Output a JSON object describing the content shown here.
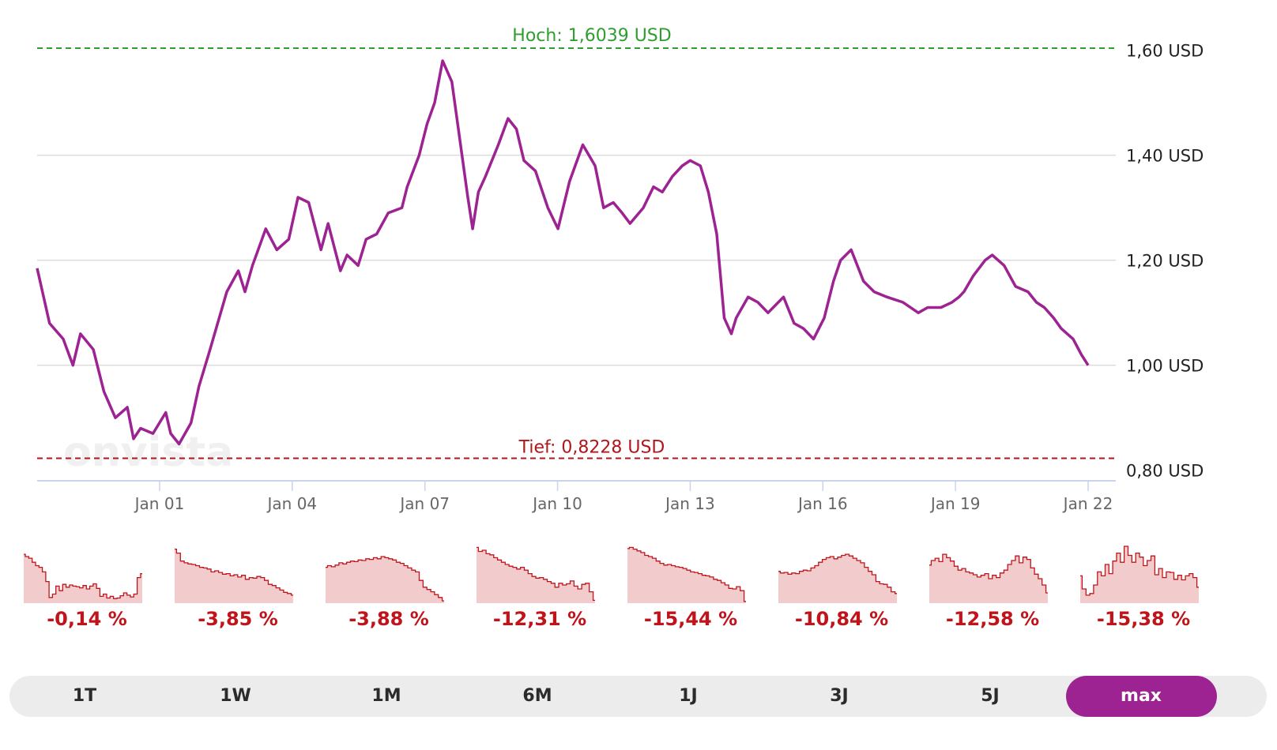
{
  "chart_data": {
    "type": "line",
    "ylim": [
      0.78,
      1.61
    ],
    "y_ticks": [
      {
        "value": 0.8,
        "label": "0,80 USD"
      },
      {
        "value": 1.0,
        "label": "1,00 USD"
      },
      {
        "value": 1.2,
        "label": "1,20 USD"
      },
      {
        "value": 1.4,
        "label": "1,40 USD"
      },
      {
        "value": 1.6,
        "label": "1,60 USD"
      }
    ],
    "x_ticks": [
      {
        "value": 0.65,
        "label": "Jan 01"
      },
      {
        "value": 3.65,
        "label": "Jan 04"
      },
      {
        "value": 6.65,
        "label": "Jan 07"
      },
      {
        "value": 9.65,
        "label": "Jan 10"
      },
      {
        "value": 12.65,
        "label": "Jan 13"
      },
      {
        "value": 15.65,
        "label": "Jan 16"
      },
      {
        "value": 18.65,
        "label": "Jan 19"
      },
      {
        "value": 21.65,
        "label": "Jan 22"
      }
    ],
    "x_range": [
      -2.12,
      21.65
    ],
    "high": {
      "value": 1.6039,
      "label": "Hoch: 1,6039 USD"
    },
    "low": {
      "value": 0.8228,
      "label": "Tief: 0,8228 USD"
    },
    "watermark": "onvista",
    "series": [
      {
        "color": "#9c2391",
        "x": [
          -2.12,
          -1.84,
          -1.53,
          -1.31,
          -1.14,
          -0.85,
          -0.61,
          -0.35,
          -0.08,
          0.06,
          0.22,
          0.5,
          0.79,
          0.9,
          1.09,
          1.36,
          1.54,
          1.79,
          2.17,
          2.43,
          2.58,
          2.75,
          3.05,
          3.3,
          3.57,
          3.78,
          4.02,
          4.3,
          4.46,
          4.74,
          4.89,
          5.14,
          5.32,
          5.56,
          5.82,
          6.13,
          6.25,
          6.52,
          6.7,
          6.87,
          7.05,
          7.26,
          7.62,
          7.73,
          7.86,
          8.02,
          8.31,
          8.53,
          8.72,
          8.89,
          9.15,
          9.43,
          9.66,
          9.92,
          10.22,
          10.5,
          10.69,
          10.91,
          11.11,
          11.29,
          11.59,
          11.82,
          12.02,
          12.25,
          12.47,
          12.65,
          12.88,
          13.06,
          13.25,
          13.42,
          13.58,
          13.69,
          13.96,
          14.18,
          14.41,
          14.76,
          15.0,
          15.21,
          15.44,
          15.68,
          15.89,
          16.05,
          16.29,
          16.57,
          16.81,
          17.1,
          17.46,
          17.81,
          18.02,
          18.32,
          18.57,
          18.73,
          18.84,
          19.05,
          19.32,
          19.48,
          19.75,
          20.01,
          20.29,
          20.48,
          20.66,
          20.87,
          21.04,
          21.31,
          21.5,
          21.65
        ],
        "y": [
          1.185,
          1.08,
          1.05,
          1.0,
          1.06,
          1.03,
          0.95,
          0.9,
          0.92,
          0.86,
          0.88,
          0.87,
          0.91,
          0.87,
          0.85,
          0.89,
          0.96,
          1.03,
          1.14,
          1.18,
          1.14,
          1.19,
          1.26,
          1.22,
          1.24,
          1.32,
          1.31,
          1.22,
          1.27,
          1.18,
          1.21,
          1.19,
          1.24,
          1.25,
          1.29,
          1.3,
          1.34,
          1.4,
          1.46,
          1.5,
          1.58,
          1.54,
          1.32,
          1.26,
          1.33,
          1.36,
          1.42,
          1.47,
          1.45,
          1.39,
          1.37,
          1.3,
          1.26,
          1.35,
          1.42,
          1.38,
          1.3,
          1.31,
          1.29,
          1.27,
          1.3,
          1.34,
          1.33,
          1.36,
          1.38,
          1.39,
          1.38,
          1.33,
          1.25,
          1.09,
          1.06,
          1.09,
          1.13,
          1.12,
          1.1,
          1.13,
          1.08,
          1.07,
          1.05,
          1.09,
          1.16,
          1.2,
          1.22,
          1.16,
          1.14,
          1.13,
          1.12,
          1.1,
          1.11,
          1.11,
          1.12,
          1.13,
          1.14,
          1.17,
          1.2,
          1.21,
          1.19,
          1.15,
          1.14,
          1.12,
          1.11,
          1.09,
          1.07,
          1.05,
          1.02,
          1.0
        ]
      }
    ]
  },
  "sparklines": [
    {
      "period": "1T",
      "change": "-0,14 %",
      "values": [
        0.86,
        0.82,
        0.79,
        0.72,
        0.66,
        0.63,
        0.55,
        0.38,
        0.1,
        0.16,
        0.3,
        0.22,
        0.33,
        0.28,
        0.32,
        0.3,
        0.29,
        0.27,
        0.31,
        0.25,
        0.3,
        0.34,
        0.26,
        0.12,
        0.16,
        0.09,
        0.12,
        0.08,
        0.09,
        0.13,
        0.18,
        0.14,
        0.11,
        0.16,
        0.45,
        0.52
      ]
    },
    {
      "period": "1W",
      "change": "-3,85 %",
      "values": [
        0.95,
        0.88,
        0.74,
        0.71,
        0.69,
        0.68,
        0.66,
        0.63,
        0.62,
        0.6,
        0.55,
        0.57,
        0.54,
        0.51,
        0.52,
        0.48,
        0.5,
        0.46,
        0.49,
        0.42,
        0.45,
        0.44,
        0.47,
        0.45,
        0.4,
        0.33,
        0.31,
        0.27,
        0.23,
        0.19,
        0.17,
        0.14
      ]
    },
    {
      "period": "1M",
      "change": "-3,88 %",
      "values": [
        0.63,
        0.66,
        0.64,
        0.67,
        0.71,
        0.69,
        0.72,
        0.74,
        0.73,
        0.76,
        0.75,
        0.78,
        0.77,
        0.8,
        0.78,
        0.82,
        0.8,
        0.78,
        0.76,
        0.72,
        0.7,
        0.66,
        0.62,
        0.58,
        0.55,
        0.4,
        0.28,
        0.24,
        0.2,
        0.15,
        0.1,
        0.04
      ]
    },
    {
      "period": "6M",
      "change": "-12,31 %",
      "values": [
        0.98,
        0.91,
        0.93,
        0.87,
        0.85,
        0.8,
        0.76,
        0.72,
        0.68,
        0.65,
        0.63,
        0.6,
        0.63,
        0.58,
        0.52,
        0.47,
        0.44,
        0.45,
        0.42,
        0.38,
        0.35,
        0.28,
        0.35,
        0.32,
        0.34,
        0.39,
        0.3,
        0.25,
        0.33,
        0.35,
        0.2,
        0.05
      ]
    },
    {
      "period": "1J",
      "change": "-15,44 %",
      "values": [
        0.96,
        0.98,
        0.95,
        0.92,
        0.89,
        0.84,
        0.82,
        0.79,
        0.74,
        0.7,
        0.67,
        0.68,
        0.66,
        0.64,
        0.63,
        0.61,
        0.58,
        0.55,
        0.54,
        0.52,
        0.49,
        0.48,
        0.46,
        0.42,
        0.4,
        0.36,
        0.32,
        0.26,
        0.25,
        0.29,
        0.22,
        0.03
      ]
    },
    {
      "period": "3J",
      "change": "-10,84 %",
      "values": [
        0.56,
        0.53,
        0.54,
        0.51,
        0.53,
        0.52,
        0.56,
        0.58,
        0.57,
        0.62,
        0.66,
        0.72,
        0.77,
        0.8,
        0.82,
        0.78,
        0.81,
        0.84,
        0.86,
        0.83,
        0.79,
        0.75,
        0.71,
        0.63,
        0.56,
        0.5,
        0.38,
        0.34,
        0.33,
        0.28,
        0.2,
        0.17
      ]
    },
    {
      "period": "5J",
      "change": "-12,58 %",
      "values": [
        0.67,
        0.75,
        0.79,
        0.73,
        0.86,
        0.8,
        0.74,
        0.65,
        0.58,
        0.61,
        0.55,
        0.53,
        0.5,
        0.46,
        0.49,
        0.52,
        0.43,
        0.49,
        0.45,
        0.53,
        0.58,
        0.68,
        0.75,
        0.83,
        0.71,
        0.81,
        0.77,
        0.62,
        0.51,
        0.43,
        0.32,
        0.18
      ]
    },
    {
      "period": "max",
      "change": "-15,38 %",
      "values": [
        0.48,
        0.25,
        0.14,
        0.17,
        0.32,
        0.55,
        0.48,
        0.68,
        0.52,
        0.74,
        0.88,
        0.72,
        1.0,
        0.84,
        0.72,
        0.88,
        0.81,
        0.66,
        0.75,
        0.83,
        0.5,
        0.61,
        0.45,
        0.55,
        0.54,
        0.42,
        0.49,
        0.41,
        0.48,
        0.52,
        0.45,
        0.28
      ]
    }
  ],
  "range_buttons": [
    {
      "label": "1T",
      "active": false
    },
    {
      "label": "1W",
      "active": false
    },
    {
      "label": "1M",
      "active": false
    },
    {
      "label": "6M",
      "active": false
    },
    {
      "label": "1J",
      "active": false
    },
    {
      "label": "3J",
      "active": false
    },
    {
      "label": "5J",
      "active": false
    },
    {
      "label": "max",
      "active": true
    }
  ],
  "colors": {
    "line": "#9c2391",
    "high": "#2e9e2e",
    "low": "#b0161c",
    "sparkline_fill": "#f2cccc",
    "sparkline_stroke": "#c0141a",
    "active_button": "#9c2391"
  }
}
